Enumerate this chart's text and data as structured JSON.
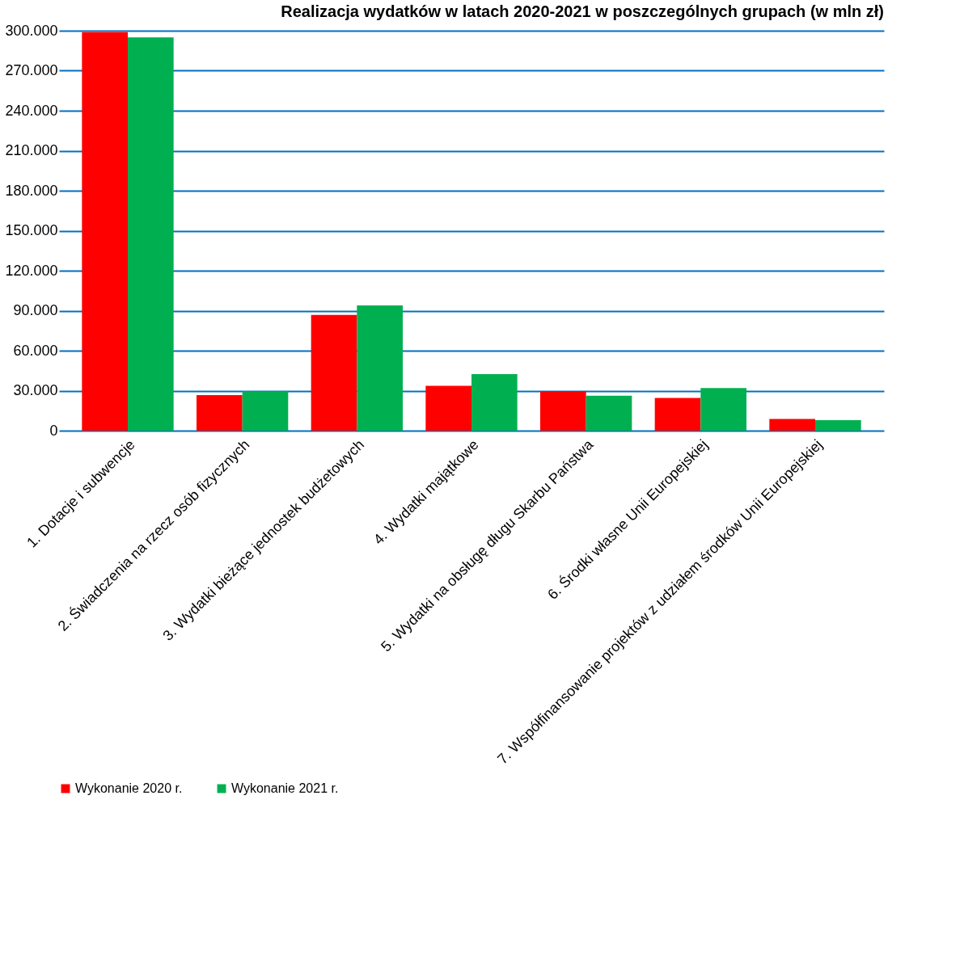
{
  "chart_data": {
    "type": "bar",
    "title": "Realizacja wydatków w latach 2020-2021 w poszczególnych grupach (w mln zł)",
    "categories": [
      "1. Dotacje i subwencje",
      "2. Świadczenia na rzecz osób fizycznych",
      "3. Wydatki bieżące jednostek budżetowych",
      "4. Wydatki majątkowe",
      "5. Wydatki na obsługę długu Skarbu Państwa",
      "6. Środki własne Unii Europejskiej",
      "7. Współfinansowanie projektów z udziałem środków Unii Europejskiej"
    ],
    "series": [
      {
        "name": "Wykonanie 2020 r.",
        "color": "#ff0000",
        "values": [
          299000,
          26700,
          86800,
          33600,
          29500,
          24500,
          8800
        ]
      },
      {
        "name": "Wykonanie 2021 r.",
        "color": "#00b050",
        "values": [
          295000,
          29500,
          94000,
          42500,
          26200,
          32000,
          7900
        ]
      }
    ],
    "ylim": [
      0,
      300000
    ],
    "yticks": [
      {
        "value": 0,
        "label": "0"
      },
      {
        "value": 30000,
        "label": "30.000"
      },
      {
        "value": 60000,
        "label": "60.000"
      },
      {
        "value": 90000,
        "label": "90.000"
      },
      {
        "value": 120000,
        "label": "120.000"
      },
      {
        "value": 150000,
        "label": "150.000"
      },
      {
        "value": 180000,
        "label": "180.000"
      },
      {
        "value": 210000,
        "label": "210.000"
      },
      {
        "value": 240000,
        "label": "240.000"
      },
      {
        "value": 270000,
        "label": "270.000"
      },
      {
        "value": 300000,
        "label": "300.000"
      }
    ],
    "grid": "y",
    "legend": "bottom"
  }
}
